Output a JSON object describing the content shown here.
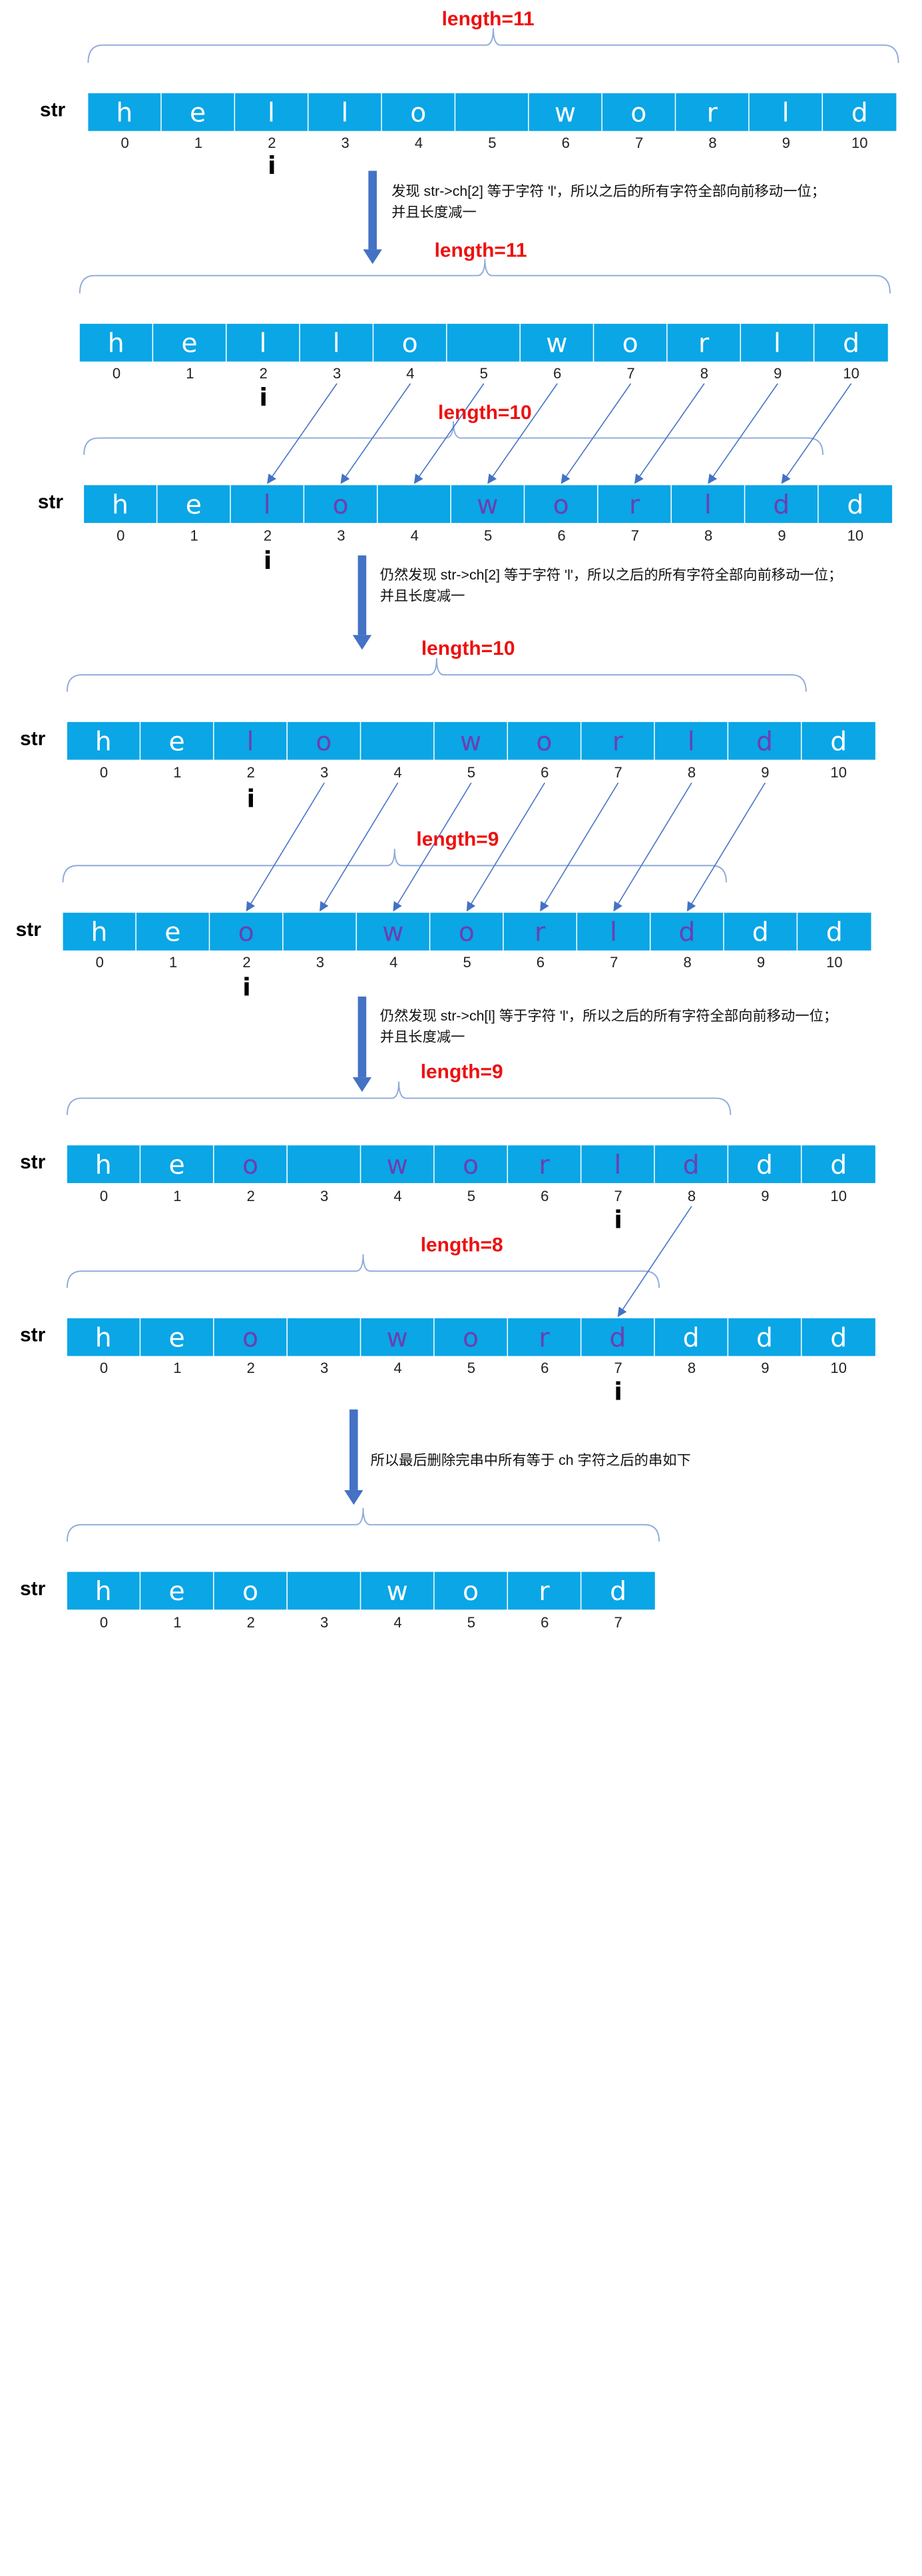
{
  "str_label": "str",
  "pointer_label": "i",
  "colors": {
    "cell_fill": "#0aa6e6",
    "cell_text": "#ffffff",
    "moved_text": "#6b3fb2",
    "length_text": "#ee1010",
    "arrow": "#4472c4",
    "brace": "#8ea9db"
  },
  "steps": [
    {
      "length_label": "length=11",
      "cells": [
        {
          "c": "h"
        },
        {
          "c": "e"
        },
        {
          "c": "l"
        },
        {
          "c": "l"
        },
        {
          "c": "o"
        },
        {
          "c": ""
        },
        {
          "c": "w"
        },
        {
          "c": "o"
        },
        {
          "c": "r"
        },
        {
          "c": "l"
        },
        {
          "c": "d"
        }
      ],
      "indices": [
        "0",
        "1",
        "2",
        "3",
        "4",
        "5",
        "6",
        "7",
        "8",
        "9",
        "10"
      ],
      "pointer_index": 2,
      "shows_str_label": true
    },
    {
      "length_label": "length=11",
      "cells": [
        {
          "c": "h"
        },
        {
          "c": "e"
        },
        {
          "c": "l"
        },
        {
          "c": "l"
        },
        {
          "c": "o"
        },
        {
          "c": ""
        },
        {
          "c": "w"
        },
        {
          "c": "o"
        },
        {
          "c": "r"
        },
        {
          "c": "l"
        },
        {
          "c": "d"
        }
      ],
      "indices": [
        "0",
        "1",
        "2",
        "3",
        "4",
        "5",
        "6",
        "7",
        "8",
        "9",
        "10"
      ],
      "pointer_index": 2,
      "shows_str_label": false
    },
    {
      "length_label": "length=10",
      "cells": [
        {
          "c": "h"
        },
        {
          "c": "e"
        },
        {
          "c": "l",
          "m": true
        },
        {
          "c": "o",
          "m": true
        },
        {
          "c": "",
          "m": true
        },
        {
          "c": "w",
          "m": true
        },
        {
          "c": "o",
          "m": true
        },
        {
          "c": "r",
          "m": true
        },
        {
          "c": "l",
          "m": true
        },
        {
          "c": "d",
          "m": true
        },
        {
          "c": "d"
        }
      ],
      "indices": [
        "0",
        "1",
        "2",
        "3",
        "4",
        "5",
        "6",
        "7",
        "8",
        "9",
        "10"
      ],
      "pointer_index": 2,
      "shows_str_label": true
    },
    {
      "length_label": "length=10",
      "cells": [
        {
          "c": "h"
        },
        {
          "c": "e"
        },
        {
          "c": "l",
          "m": true
        },
        {
          "c": "o",
          "m": true
        },
        {
          "c": "",
          "m": true
        },
        {
          "c": "w",
          "m": true
        },
        {
          "c": "o",
          "m": true
        },
        {
          "c": "r",
          "m": true
        },
        {
          "c": "l",
          "m": true
        },
        {
          "c": "d",
          "m": true
        },
        {
          "c": "d"
        }
      ],
      "indices": [
        "0",
        "1",
        "2",
        "3",
        "4",
        "5",
        "6",
        "7",
        "8",
        "9",
        "10"
      ],
      "pointer_index": 2,
      "shows_str_label": true
    },
    {
      "length_label": "length=9",
      "cells": [
        {
          "c": "h"
        },
        {
          "c": "e"
        },
        {
          "c": "o",
          "m": true
        },
        {
          "c": "",
          "m": true
        },
        {
          "c": "w",
          "m": true
        },
        {
          "c": "o",
          "m": true
        },
        {
          "c": "r",
          "m": true
        },
        {
          "c": "l",
          "m": true
        },
        {
          "c": "d",
          "m": true
        },
        {
          "c": "d"
        },
        {
          "c": "d"
        }
      ],
      "indices": [
        "0",
        "1",
        "2",
        "3",
        "4",
        "5",
        "6",
        "7",
        "8",
        "9",
        "10"
      ],
      "pointer_index": 2,
      "shows_str_label": true
    },
    {
      "length_label": "length=9",
      "cells": [
        {
          "c": "h"
        },
        {
          "c": "e"
        },
        {
          "c": "o",
          "m": true
        },
        {
          "c": "",
          "m": true
        },
        {
          "c": "w",
          "m": true
        },
        {
          "c": "o",
          "m": true
        },
        {
          "c": "r",
          "m": true
        },
        {
          "c": "l",
          "m": true
        },
        {
          "c": "d",
          "m": true
        },
        {
          "c": "d"
        },
        {
          "c": "d"
        }
      ],
      "indices": [
        "0",
        "1",
        "2",
        "3",
        "4",
        "5",
        "6",
        "7",
        "8",
        "9",
        "10"
      ],
      "pointer_index": 7,
      "shows_str_label": true
    },
    {
      "length_label": "length=8",
      "cells": [
        {
          "c": "h"
        },
        {
          "c": "e"
        },
        {
          "c": "o",
          "m": true
        },
        {
          "c": "",
          "m": true
        },
        {
          "c": "w",
          "m": true
        },
        {
          "c": "o",
          "m": true
        },
        {
          "c": "r",
          "m": true
        },
        {
          "c": "d",
          "m": true
        },
        {
          "c": "d"
        },
        {
          "c": "d"
        },
        {
          "c": "d"
        }
      ],
      "indices": [
        "0",
        "1",
        "2",
        "3",
        "4",
        "5",
        "6",
        "7",
        "8",
        "9",
        "10"
      ],
      "pointer_index": 7,
      "shows_str_label": true
    },
    {
      "length_label": "",
      "cells": [
        {
          "c": "h"
        },
        {
          "c": "e"
        },
        {
          "c": "o"
        },
        {
          "c": ""
        },
        {
          "c": "w"
        },
        {
          "c": "o"
        },
        {
          "c": "r"
        },
        {
          "c": "d"
        }
      ],
      "indices": [
        "0",
        "1",
        "2",
        "3",
        "4",
        "5",
        "6",
        "7"
      ],
      "pointer_index": null,
      "shows_str_label": true
    }
  ],
  "notes": [
    {
      "lines": [
        "发现 str->ch[2] 等于字符 'l'，所以之后的所有字符全部向前移动一位；",
        "并且长度减一"
      ]
    },
    {
      "lines": [
        "仍然发现 str->ch[2] 等于字符 'l'，所以之后的所有字符全部向前移动一位；",
        "并且长度减一"
      ]
    },
    {
      "lines": [
        "仍然发现 str->ch[l] 等于字符 'l'，所以之后的所有字符全部向前移动一位；",
        "并且长度减一"
      ]
    },
    {
      "lines": [
        "所以最后删除完串中所有等于 ch 字符之后的串如下"
      ]
    }
  ]
}
